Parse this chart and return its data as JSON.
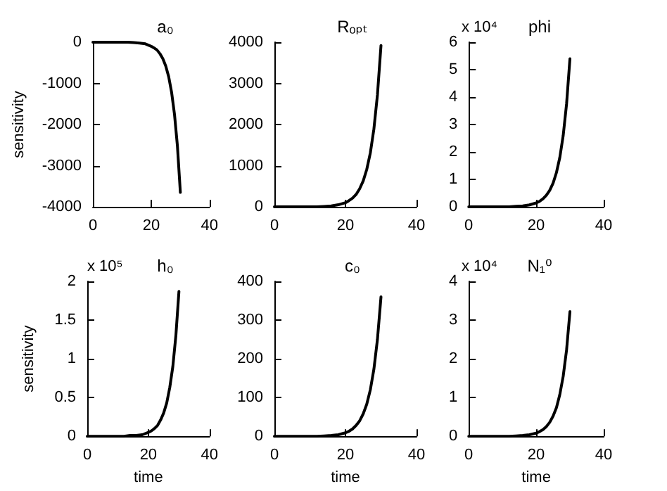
{
  "chart_data": [
    {
      "type": "line",
      "title": "a₀",
      "ylabel": "sensitivity",
      "x": [
        0,
        5,
        10,
        12,
        14,
        16,
        18,
        20,
        21,
        22,
        23,
        24,
        25,
        26,
        27,
        28,
        29,
        30
      ],
      "values": [
        0,
        0,
        0,
        0,
        -10,
        -20,
        -40,
        -100,
        -140,
        -190,
        -280,
        -400,
        -580,
        -840,
        -1220,
        -1760,
        -2530,
        -3650
      ],
      "color": "#000000",
      "xlim": [
        0,
        40
      ],
      "xticks": [
        0,
        20,
        40
      ],
      "ylim": [
        -4000,
        0
      ],
      "yticks": [
        -4000,
        -3000,
        -2000,
        -1000,
        0
      ],
      "grid": false,
      "marker": "none",
      "line_style": "solid"
    },
    {
      "type": "line",
      "title": "Rₒₚₜ",
      "x": [
        0,
        5,
        10,
        12,
        14,
        16,
        18,
        20,
        21,
        22,
        23,
        24,
        25,
        26,
        27,
        28,
        29,
        30
      ],
      "values": [
        0,
        0,
        0,
        0,
        10,
        20,
        50,
        100,
        150,
        210,
        300,
        440,
        630,
        910,
        1310,
        1890,
        2720,
        3920
      ],
      "color": "#000000",
      "xlim": [
        0,
        40
      ],
      "xticks": [
        0,
        20,
        40
      ],
      "ylim": [
        0,
        4000
      ],
      "yticks": [
        0,
        1000,
        2000,
        3000,
        4000
      ],
      "grid": false,
      "marker": "none",
      "line_style": "solid"
    },
    {
      "type": "line",
      "title": "phi",
      "annotations": [
        "x 10⁴"
      ],
      "x": [
        0,
        5,
        10,
        12,
        14,
        16,
        18,
        20,
        21,
        22,
        23,
        24,
        25,
        26,
        27,
        28,
        29,
        30
      ],
      "values": [
        0,
        0,
        0,
        0,
        0.02,
        0.03,
        0.07,
        0.14,
        0.2,
        0.29,
        0.42,
        0.6,
        0.86,
        1.25,
        1.8,
        2.6,
        3.75,
        5.4
      ],
      "color": "#000000",
      "xlim": [
        0,
        40
      ],
      "xticks": [
        0,
        20,
        40
      ],
      "ylim": [
        0,
        6
      ],
      "yticks": [
        0,
        1,
        2,
        3,
        4,
        5,
        6
      ],
      "grid": false,
      "marker": "none",
      "line_style": "solid"
    },
    {
      "type": "line",
      "title": "h₀",
      "xlabel": "time",
      "ylabel": "sensitivity",
      "annotations": [
        "x 10⁵"
      ],
      "x": [
        0,
        5,
        10,
        12,
        14,
        16,
        18,
        20,
        21,
        22,
        23,
        24,
        25,
        26,
        27,
        28,
        29,
        30
      ],
      "values": [
        0,
        0,
        0,
        0,
        0.01,
        0.01,
        0.02,
        0.05,
        0.07,
        0.1,
        0.14,
        0.21,
        0.3,
        0.43,
        0.63,
        0.9,
        1.3,
        1.87
      ],
      "color": "#000000",
      "xlim": [
        0,
        40
      ],
      "xticks": [
        0,
        20,
        40
      ],
      "ylim": [
        0,
        2
      ],
      "yticks": [
        0,
        0.5,
        1,
        1.5,
        2
      ],
      "grid": false,
      "marker": "none",
      "line_style": "solid"
    },
    {
      "type": "line",
      "title": "c₀",
      "xlabel": "time",
      "x": [
        0,
        5,
        10,
        12,
        14,
        16,
        18,
        20,
        21,
        22,
        23,
        24,
        25,
        26,
        27,
        28,
        29,
        30
      ],
      "values": [
        0,
        0,
        0,
        0,
        1,
        2,
        4,
        9,
        13,
        19,
        28,
        40,
        58,
        83,
        120,
        173,
        250,
        360
      ],
      "color": "#000000",
      "xlim": [
        0,
        40
      ],
      "xticks": [
        0,
        20,
        40
      ],
      "ylim": [
        0,
        400
      ],
      "yticks": [
        0,
        100,
        200,
        300,
        400
      ],
      "grid": false,
      "marker": "none",
      "line_style": "solid"
    },
    {
      "type": "line",
      "title": "N₁⁰",
      "xlabel": "time",
      "annotations": [
        "x 10⁴"
      ],
      "x": [
        0,
        5,
        10,
        12,
        14,
        16,
        18,
        20,
        21,
        22,
        23,
        24,
        25,
        26,
        27,
        28,
        29,
        30
      ],
      "values": [
        0,
        0,
        0,
        0,
        0.01,
        0.02,
        0.04,
        0.08,
        0.12,
        0.17,
        0.25,
        0.36,
        0.52,
        0.74,
        1.08,
        1.55,
        2.23,
        3.22
      ],
      "color": "#000000",
      "xlim": [
        0,
        40
      ],
      "xticks": [
        0,
        20,
        40
      ],
      "ylim": [
        0,
        4
      ],
      "yticks": [
        0,
        1,
        2,
        3,
        4
      ],
      "grid": false,
      "marker": "none",
      "line_style": "solid"
    }
  ]
}
